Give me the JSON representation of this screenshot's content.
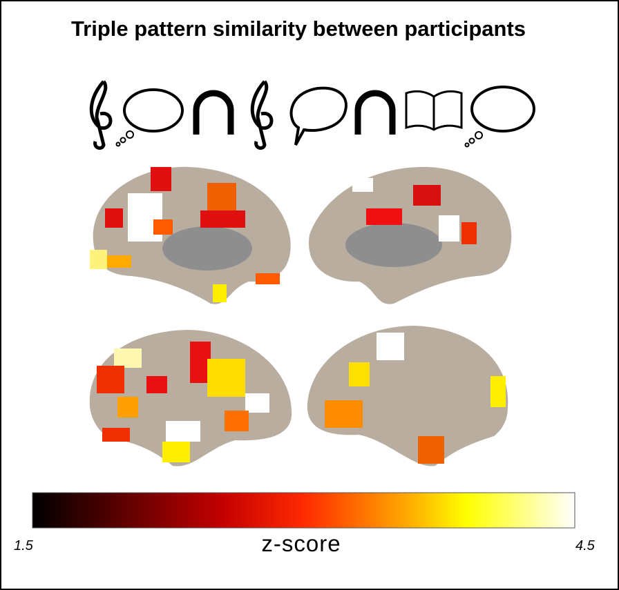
{
  "title": "Triple pattern similarity between participants",
  "colorbar": {
    "label": "z-score",
    "min": 1.5,
    "max": 4.5
  }
}
